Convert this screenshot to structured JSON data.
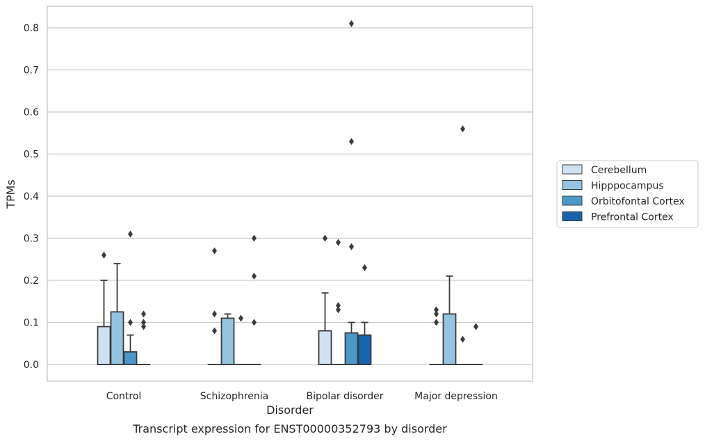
{
  "caption": "Transcript expression for ENST00000352793 by disorder",
  "chart_data": {
    "type": "box",
    "xlabel": "Disorder",
    "ylabel": "TPMs",
    "categories": [
      "Control",
      "Schizophrenia",
      "Bipolar disorder",
      "Major depression"
    ],
    "ylim": [
      -0.04,
      0.85
    ],
    "yticks": [
      0.0,
      0.1,
      0.2,
      0.3,
      0.4,
      0.5,
      0.6,
      0.7,
      0.8
    ],
    "ytick_labels": [
      "0.0",
      "0.1",
      "0.2",
      "0.3",
      "0.4",
      "0.5",
      "0.6",
      "0.7",
      "0.8"
    ],
    "grid": true,
    "legend_placement": "right",
    "series": [
      {
        "name": "Cerebellum",
        "color": "#d0e1f2",
        "boxes": [
          {
            "q1": 0.0,
            "median": 0.0,
            "q3": 0.09,
            "whisker_low": 0.0,
            "whisker_high": 0.2,
            "outliers": [
              0.26
            ]
          },
          {
            "q1": 0.0,
            "median": 0.0,
            "q3": 0.0,
            "whisker_low": 0.0,
            "whisker_high": 0.0,
            "outliers": [
              0.27,
              0.12,
              0.08
            ]
          },
          {
            "q1": 0.0,
            "median": 0.0,
            "q3": 0.08,
            "whisker_low": 0.0,
            "whisker_high": 0.17,
            "outliers": [
              0.3
            ]
          },
          {
            "q1": 0.0,
            "median": 0.0,
            "q3": 0.0,
            "whisker_low": 0.0,
            "whisker_high": 0.0,
            "outliers": [
              0.13,
              0.12,
              0.1
            ]
          }
        ]
      },
      {
        "name": "Hipppocampus",
        "color": "#94c4df",
        "boxes": [
          {
            "q1": 0.0,
            "median": 0.0,
            "q3": 0.125,
            "whisker_low": 0.0,
            "whisker_high": 0.24,
            "outliers": []
          },
          {
            "q1": 0.0,
            "median": 0.0,
            "q3": 0.11,
            "whisker_low": 0.0,
            "whisker_high": 0.12,
            "outliers": []
          },
          {
            "q1": 0.0,
            "median": 0.0,
            "q3": 0.0,
            "whisker_low": 0.0,
            "whisker_high": 0.0,
            "outliers": [
              0.29,
              0.14,
              0.13
            ]
          },
          {
            "q1": 0.0,
            "median": 0.0,
            "q3": 0.12,
            "whisker_low": 0.0,
            "whisker_high": 0.21,
            "outliers": []
          }
        ]
      },
      {
        "name": "Orbitofontal Cortex",
        "color": "#4a98c9",
        "boxes": [
          {
            "q1": 0.0,
            "median": 0.0,
            "q3": 0.03,
            "whisker_low": 0.0,
            "whisker_high": 0.07,
            "outliers": [
              0.31,
              0.1
            ]
          },
          {
            "q1": 0.0,
            "median": 0.0,
            "q3": 0.0,
            "whisker_low": 0.0,
            "whisker_high": 0.0,
            "outliers": [
              0.11
            ]
          },
          {
            "q1": 0.0,
            "median": 0.0,
            "q3": 0.075,
            "whisker_low": 0.0,
            "whisker_high": 0.1,
            "outliers": [
              0.81,
              0.53,
              0.28
            ]
          },
          {
            "q1": 0.0,
            "median": 0.0,
            "q3": 0.0,
            "whisker_low": 0.0,
            "whisker_high": 0.0,
            "outliers": [
              0.56,
              0.06
            ]
          }
        ]
      },
      {
        "name": "Prefrontal Cortex",
        "color": "#1764ab",
        "boxes": [
          {
            "q1": 0.0,
            "median": 0.0,
            "q3": 0.0,
            "whisker_low": 0.0,
            "whisker_high": 0.0,
            "outliers": [
              0.12,
              0.1,
              0.09
            ]
          },
          {
            "q1": 0.0,
            "median": 0.0,
            "q3": 0.0,
            "whisker_low": 0.0,
            "whisker_high": 0.0,
            "outliers": [
              0.3,
              0.21,
              0.1
            ]
          },
          {
            "q1": 0.0,
            "median": 0.0,
            "q3": 0.07,
            "whisker_low": 0.0,
            "whisker_high": 0.1,
            "outliers": [
              0.23
            ]
          },
          {
            "q1": 0.0,
            "median": 0.0,
            "q3": 0.0,
            "whisker_low": 0.0,
            "whisker_high": 0.0,
            "outliers": [
              0.09,
              0.09
            ]
          }
        ]
      }
    ]
  }
}
